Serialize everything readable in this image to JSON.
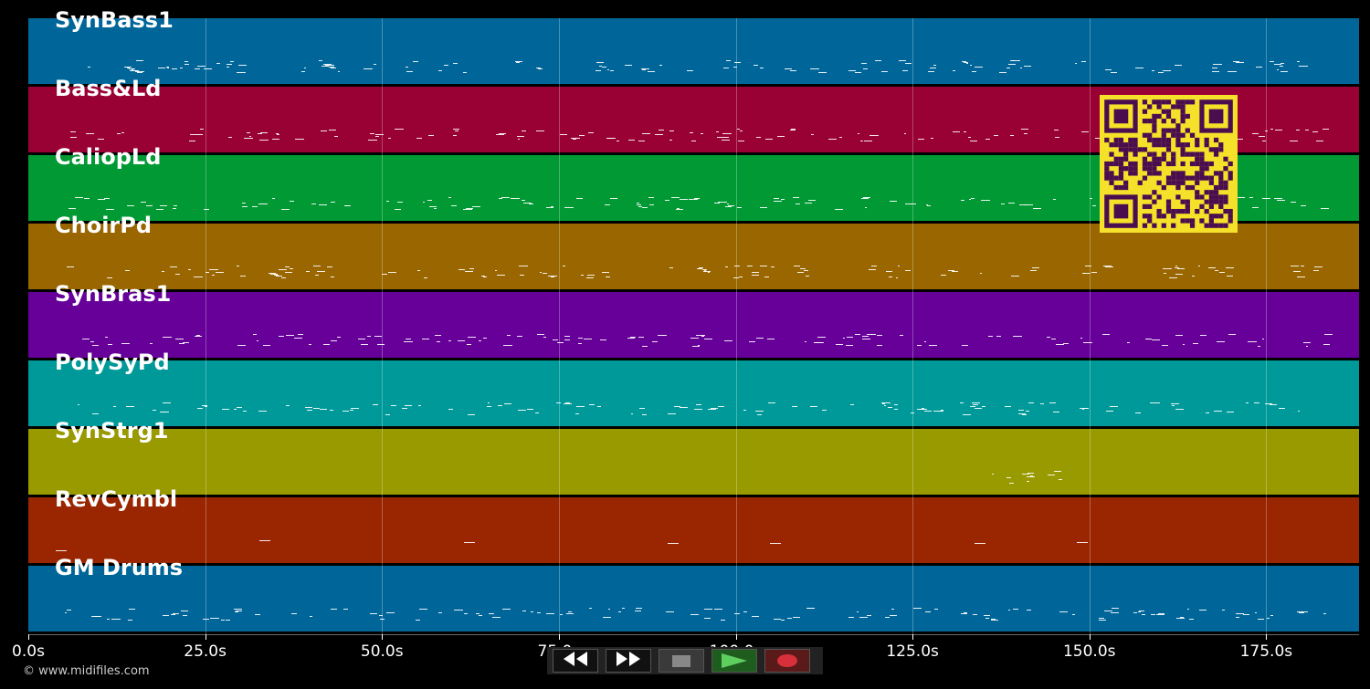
{
  "tracks": [
    {
      "name": "SynBass1",
      "color": "#006699"
    },
    {
      "name": "Bass&Ld",
      "color": "#990033"
    },
    {
      "name": "CaliopLd",
      "color": "#009933"
    },
    {
      "name": "ChoirPd",
      "color": "#996600"
    },
    {
      "name": "SynBras1",
      "color": "#660099"
    },
    {
      "name": "PolySyPd",
      "color": "#009999"
    },
    {
      "name": "SynStrg1",
      "color": "#999900"
    },
    {
      "name": "RevCymbl",
      "color": "#992600"
    },
    {
      "name": "GM Drums",
      "color": "#006699"
    }
  ],
  "timeline": {
    "ticks": [
      "0.0s",
      "25.0s",
      "50.0s",
      "75.0s",
      "100.0s",
      "125.0s",
      "150.0s",
      "175.0s"
    ],
    "tick_seconds": [
      0,
      25,
      50,
      75,
      100,
      125,
      150,
      175
    ],
    "max_seconds": 188
  },
  "transport": {
    "rewind_icon": "rewind-icon",
    "forward_icon": "fast-forward-icon",
    "stop_icon": "stop-icon",
    "play_icon": "play-icon",
    "record_icon": "record-icon"
  },
  "copyright": "© www.midifiles.com",
  "qr_colors": {
    "light": "#f5e02a",
    "dark": "#4a0d4f"
  }
}
